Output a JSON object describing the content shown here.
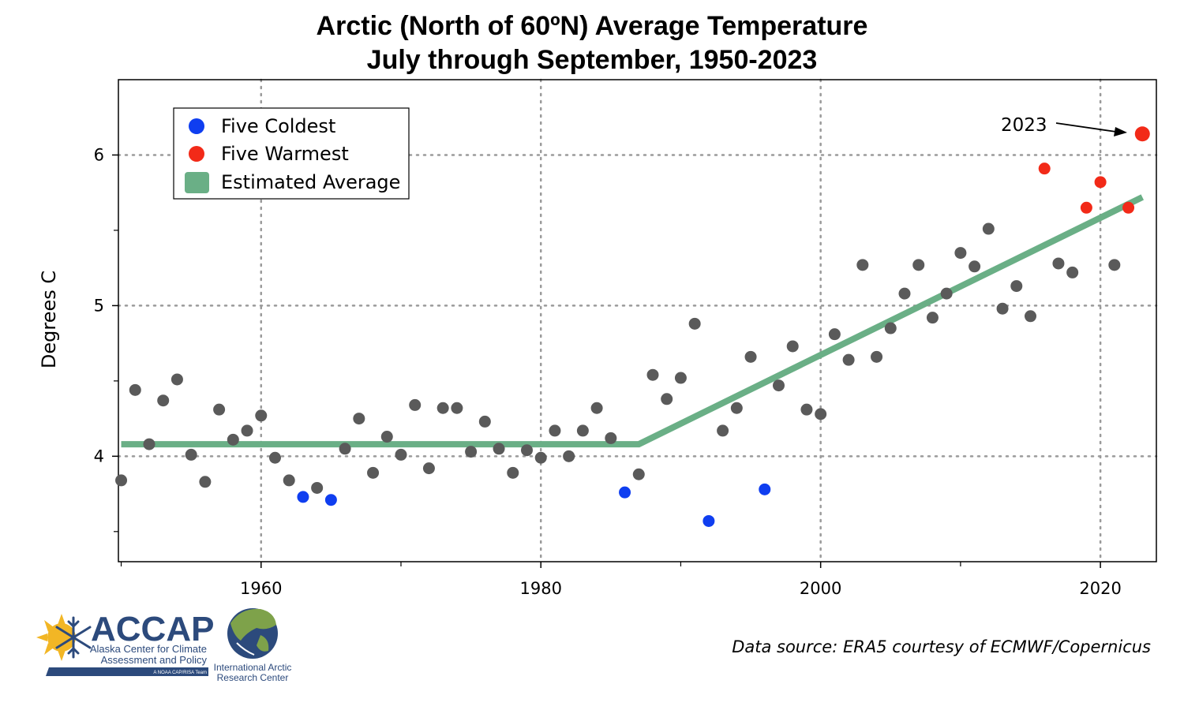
{
  "chart_data": {
    "type": "scatter",
    "title": "Arctic (North of 60ºN) Average Temperature",
    "subtitle": "July through September, 1950-2023",
    "ylabel": "Degrees C",
    "xlabel": "",
    "xlim": [
      1949.8,
      2024
    ],
    "ylim": [
      3.3,
      6.5
    ],
    "xticks_major": [
      1960,
      1980,
      2000,
      2020
    ],
    "xticks_minor": [
      1950,
      1970,
      1990,
      2010
    ],
    "yticks_major": [
      4,
      5,
      6
    ],
    "yticks_minor": [
      3.5,
      4.5,
      5.5
    ],
    "grid": true,
    "legend_position": "top-left",
    "legend": [
      "Five Coldest",
      "Five Warmest",
      "Estimated Average"
    ],
    "colors": {
      "normal": "#5a5a5a",
      "coldest": "#0f3ef0",
      "warmest": "#f22a18",
      "average": "#6aaf86"
    },
    "points": [
      {
        "x": 1950,
        "y": 3.84,
        "cat": "normal"
      },
      {
        "x": 1951,
        "y": 4.44,
        "cat": "normal"
      },
      {
        "x": 1952,
        "y": 4.08,
        "cat": "normal"
      },
      {
        "x": 1953,
        "y": 4.37,
        "cat": "normal"
      },
      {
        "x": 1954,
        "y": 4.51,
        "cat": "normal"
      },
      {
        "x": 1955,
        "y": 4.01,
        "cat": "normal"
      },
      {
        "x": 1956,
        "y": 3.83,
        "cat": "normal"
      },
      {
        "x": 1957,
        "y": 4.31,
        "cat": "normal"
      },
      {
        "x": 1958,
        "y": 4.11,
        "cat": "normal"
      },
      {
        "x": 1959,
        "y": 4.17,
        "cat": "normal"
      },
      {
        "x": 1960,
        "y": 4.27,
        "cat": "normal"
      },
      {
        "x": 1961,
        "y": 3.99,
        "cat": "normal"
      },
      {
        "x": 1962,
        "y": 3.84,
        "cat": "normal"
      },
      {
        "x": 1963,
        "y": 3.73,
        "cat": "coldest"
      },
      {
        "x": 1964,
        "y": 3.79,
        "cat": "normal"
      },
      {
        "x": 1965,
        "y": 3.71,
        "cat": "coldest"
      },
      {
        "x": 1966,
        "y": 4.05,
        "cat": "normal"
      },
      {
        "x": 1967,
        "y": 4.25,
        "cat": "normal"
      },
      {
        "x": 1968,
        "y": 3.89,
        "cat": "normal"
      },
      {
        "x": 1969,
        "y": 4.13,
        "cat": "normal"
      },
      {
        "x": 1970,
        "y": 4.01,
        "cat": "normal"
      },
      {
        "x": 1971,
        "y": 4.34,
        "cat": "normal"
      },
      {
        "x": 1972,
        "y": 3.92,
        "cat": "normal"
      },
      {
        "x": 1973,
        "y": 4.32,
        "cat": "normal"
      },
      {
        "x": 1974,
        "y": 4.32,
        "cat": "normal"
      },
      {
        "x": 1975,
        "y": 4.03,
        "cat": "normal"
      },
      {
        "x": 1976,
        "y": 4.23,
        "cat": "normal"
      },
      {
        "x": 1977,
        "y": 4.05,
        "cat": "normal"
      },
      {
        "x": 1978,
        "y": 3.89,
        "cat": "normal"
      },
      {
        "x": 1979,
        "y": 4.04,
        "cat": "normal"
      },
      {
        "x": 1980,
        "y": 3.99,
        "cat": "normal"
      },
      {
        "x": 1981,
        "y": 4.17,
        "cat": "normal"
      },
      {
        "x": 1982,
        "y": 4.0,
        "cat": "normal"
      },
      {
        "x": 1983,
        "y": 4.17,
        "cat": "normal"
      },
      {
        "x": 1984,
        "y": 4.32,
        "cat": "normal"
      },
      {
        "x": 1985,
        "y": 4.12,
        "cat": "normal"
      },
      {
        "x": 1986,
        "y": 3.76,
        "cat": "coldest"
      },
      {
        "x": 1987,
        "y": 3.88,
        "cat": "normal"
      },
      {
        "x": 1988,
        "y": 4.54,
        "cat": "normal"
      },
      {
        "x": 1989,
        "y": 4.38,
        "cat": "normal"
      },
      {
        "x": 1990,
        "y": 4.52,
        "cat": "normal"
      },
      {
        "x": 1991,
        "y": 4.88,
        "cat": "normal"
      },
      {
        "x": 1992,
        "y": 3.57,
        "cat": "coldest"
      },
      {
        "x": 1993,
        "y": 4.17,
        "cat": "normal"
      },
      {
        "x": 1994,
        "y": 4.32,
        "cat": "normal"
      },
      {
        "x": 1995,
        "y": 4.66,
        "cat": "normal"
      },
      {
        "x": 1996,
        "y": 3.78,
        "cat": "coldest"
      },
      {
        "x": 1997,
        "y": 4.47,
        "cat": "normal"
      },
      {
        "x": 1998,
        "y": 4.73,
        "cat": "normal"
      },
      {
        "x": 1999,
        "y": 4.31,
        "cat": "normal"
      },
      {
        "x": 2000,
        "y": 4.28,
        "cat": "normal"
      },
      {
        "x": 2001,
        "y": 4.81,
        "cat": "normal"
      },
      {
        "x": 2002,
        "y": 4.64,
        "cat": "normal"
      },
      {
        "x": 2003,
        "y": 5.27,
        "cat": "normal"
      },
      {
        "x": 2004,
        "y": 4.66,
        "cat": "normal"
      },
      {
        "x": 2005,
        "y": 4.85,
        "cat": "normal"
      },
      {
        "x": 2006,
        "y": 5.08,
        "cat": "normal"
      },
      {
        "x": 2007,
        "y": 5.27,
        "cat": "normal"
      },
      {
        "x": 2008,
        "y": 4.92,
        "cat": "normal"
      },
      {
        "x": 2009,
        "y": 5.08,
        "cat": "normal"
      },
      {
        "x": 2010,
        "y": 5.35,
        "cat": "normal"
      },
      {
        "x": 2011,
        "y": 5.26,
        "cat": "normal"
      },
      {
        "x": 2012,
        "y": 5.51,
        "cat": "normal"
      },
      {
        "x": 2013,
        "y": 4.98,
        "cat": "normal"
      },
      {
        "x": 2014,
        "y": 5.13,
        "cat": "normal"
      },
      {
        "x": 2015,
        "y": 4.93,
        "cat": "normal"
      },
      {
        "x": 2016,
        "y": 5.91,
        "cat": "warmest"
      },
      {
        "x": 2017,
        "y": 5.28,
        "cat": "normal"
      },
      {
        "x": 2018,
        "y": 5.22,
        "cat": "normal"
      },
      {
        "x": 2019,
        "y": 5.65,
        "cat": "warmest"
      },
      {
        "x": 2020,
        "y": 5.82,
        "cat": "warmest"
      },
      {
        "x": 2021,
        "y": 5.27,
        "cat": "normal"
      },
      {
        "x": 2022,
        "y": 5.65,
        "cat": "warmest"
      },
      {
        "x": 2023,
        "y": 6.14,
        "cat": "warmest"
      }
    ],
    "average_line": [
      {
        "x": 1950,
        "y": 4.08
      },
      {
        "x": 1987,
        "y": 4.08
      },
      {
        "x": 2023,
        "y": 5.72
      }
    ],
    "annotation": {
      "text": "2023",
      "target_x": 2023,
      "target_y": 6.14
    }
  },
  "footer": {
    "source": "Data source: ERA5 courtesy of ECMWF/Copernicus"
  },
  "logos": {
    "accap_name": "ACCAP",
    "accap_line1": "Alaska Center for Climate",
    "accap_line2": "Assessment and Policy",
    "accap_tagline": "A NOAA CAP/RISA Team",
    "iarc_line1": "International Arctic",
    "iarc_line2": "Research Center"
  }
}
